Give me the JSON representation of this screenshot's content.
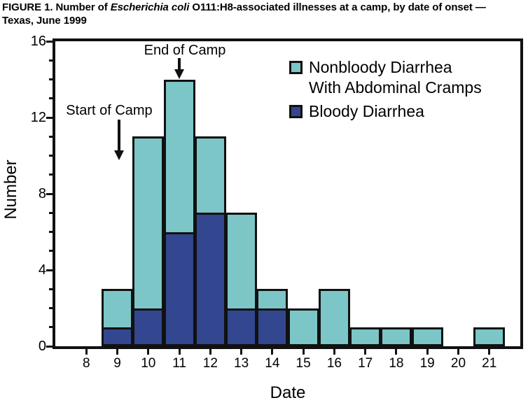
{
  "title": {
    "prefix": "FIGURE 1. Number of ",
    "italic": "Escherichia coli",
    "suffix": " O111:H8-associated illnesses at a camp, by date of onset — Texas, June 1999"
  },
  "colors": {
    "nonbloody": "#7CC6C7",
    "bloody": "#32478F",
    "axis": "#111111"
  },
  "legend": {
    "items": [
      {
        "label": "Nonbloody Diarrhea With Abdominal Cramps",
        "line1": "Nonbloody Diarrhea",
        "line2": "With Abdominal Cramps"
      },
      {
        "label": "Bloody Diarrhea",
        "line1": "Bloody Diarrhea"
      }
    ]
  },
  "chart_data": {
    "type": "bar",
    "stacked": true,
    "title": "FIGURE 1. Number of Escherichia coli O111:H8-associated illnesses at a camp, by date of onset — Texas, June 1999",
    "xlabel": "Date",
    "ylabel": "Number",
    "ylim": [
      0,
      16
    ],
    "categories": [
      8,
      9,
      10,
      11,
      12,
      13,
      14,
      15,
      16,
      17,
      18,
      19,
      20,
      21
    ],
    "series": [
      {
        "name": "Bloody Diarrhea",
        "color": "#32478F",
        "values": [
          0,
          1,
          2,
          6,
          7,
          2,
          2,
          0,
          0,
          0,
          0,
          0,
          0,
          0
        ]
      },
      {
        "name": "Nonbloody Diarrhea With Abdominal Cramps",
        "color": "#7CC6C7",
        "values": [
          0,
          2,
          9,
          8,
          4,
          5,
          1,
          2,
          3,
          1,
          1,
          1,
          0,
          1
        ]
      }
    ],
    "totals": [
      0,
      3,
      11,
      14,
      11,
      7,
      3,
      2,
      3,
      1,
      1,
      1,
      0,
      1
    ],
    "yticks_major": [
      0,
      4,
      8,
      12,
      16
    ],
    "ytick_minor_step": 1,
    "grid": false,
    "legend_position": "upper-right-inside",
    "annotations": [
      {
        "label": "Start of Camp",
        "date": 9
      },
      {
        "label": "End of Camp",
        "date": 11
      }
    ]
  }
}
